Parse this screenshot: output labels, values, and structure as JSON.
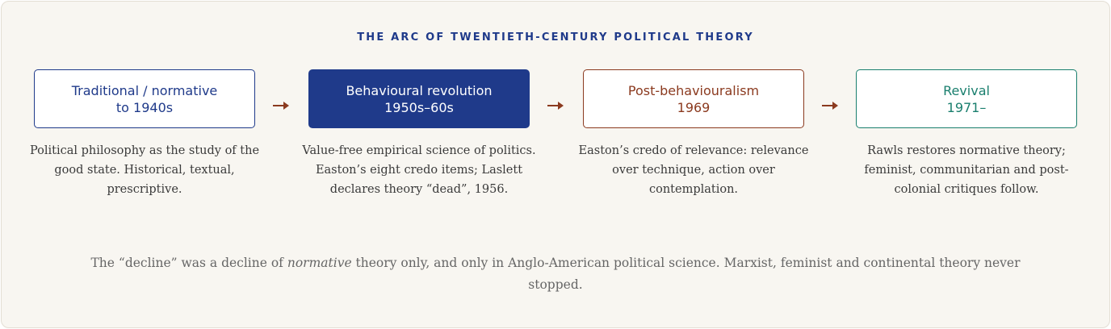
{
  "title": "THE ARC OF TWENTIETH-CENTURY POLITICAL THEORY",
  "stages": [
    {
      "label": "Traditional / normative",
      "period": "to 1940s",
      "description": "Political philosophy as the study of the good state. Historical, textual, prescriptive."
    },
    {
      "label": "Behavioural revolution",
      "period": "1950s–60s",
      "description": "Value-free empirical science of politics. Easton’s eight credo items; Laslett declares theory “dead”, 1956."
    },
    {
      "label": "Post-behaviouralism",
      "period": "1969",
      "description": "Easton’s credo of relevance: relevance over technique, action over contemplation."
    },
    {
      "label": "Revival",
      "period": "1971–",
      "description": "Rawls restores normative theory; feminist, communitarian and post-colonial critiques follow."
    }
  ],
  "footnote": {
    "before": "The “decline” was a decline of ",
    "emphasis": "normative",
    "after": " theory only, and only in Anglo-American political science. Marxist, feminist and continental theory never stopped."
  }
}
